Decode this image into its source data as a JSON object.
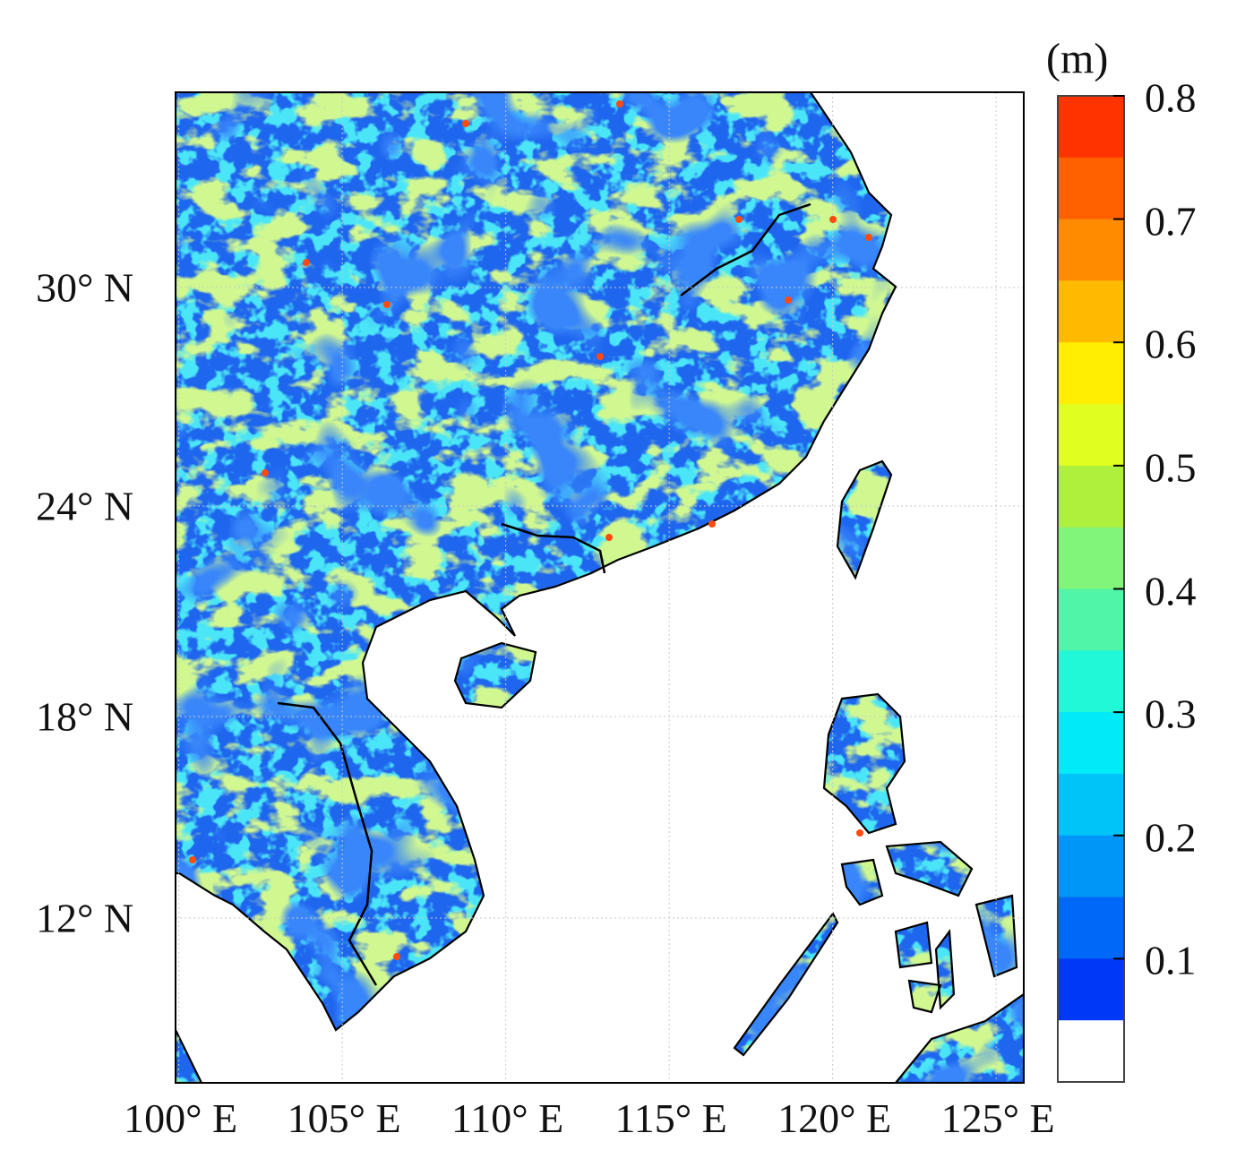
{
  "map": {
    "title": "",
    "extent_lon": [
      100,
      126
    ],
    "extent_lat": [
      7,
      35.5
    ],
    "x_ticks": [
      {
        "lon": 100,
        "label": "100° E"
      },
      {
        "lon": 105,
        "label": "105° E"
      },
      {
        "lon": 110,
        "label": "110° E"
      },
      {
        "lon": 115,
        "label": "115° E"
      },
      {
        "lon": 120,
        "label": "120° E"
      },
      {
        "lon": 125,
        "label": "125° E"
      }
    ],
    "y_ticks": [
      {
        "lat": 30,
        "label": "30° N"
      },
      {
        "lat": 24,
        "label": "24° N"
      },
      {
        "lat": 18,
        "label": "18° N"
      },
      {
        "lat": 12,
        "label": "12° N"
      }
    ],
    "grid": true
  },
  "colorbar": {
    "unit": "(m)",
    "min": 0,
    "max": 0.8,
    "step": 0.05,
    "tick_labels": [
      "0.8",
      "0.7",
      "0.6",
      "0.5",
      "0.4",
      "0.3",
      "0.2",
      "0.1"
    ],
    "tick_values": [
      0.8,
      0.7,
      0.6,
      0.5,
      0.4,
      0.3,
      0.2,
      0.1
    ],
    "colors": [
      "#ff3300",
      "#ff6000",
      "#ff8c00",
      "#ffbb00",
      "#ffee00",
      "#e0ff20",
      "#aef03c",
      "#80f57a",
      "#50f5a8",
      "#20f8d8",
      "#00eaf8",
      "#00c4f8",
      "#0096f8",
      "#0068f8",
      "#0038f8",
      "#ffffff"
    ]
  },
  "land_colors": {
    "base": "#1f66ee",
    "low": "#0a3cf5",
    "mid": "#12c8f0",
    "high": "#a4f046",
    "coast": "#000000"
  }
}
